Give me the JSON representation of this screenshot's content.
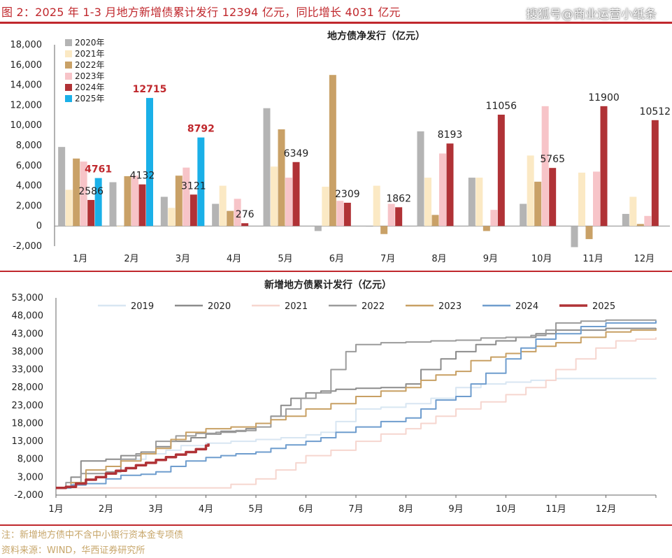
{
  "header": {
    "title": "图 2：2025 年 1-3 月地方新增债累计发行 12394 亿元，同比增长 4031 亿元",
    "watermark": "搜狐号@商业运营小纸条"
  },
  "chart_data": [
    {
      "type": "bar",
      "title": "地方债净发行（亿元）",
      "categories": [
        "1月",
        "2月",
        "3月",
        "4月",
        "5月",
        "6月",
        "7月",
        "8月",
        "9月",
        "10月",
        "11月",
        "12月"
      ],
      "ylim": [
        -2000,
        18000
      ],
      "yticks": [
        "-2,000",
        "0",
        "2,000",
        "4,000",
        "6,000",
        "8,000",
        "10,000",
        "12,000",
        "14,000",
        "16,000",
        "18,000"
      ],
      "legend_position": "top-left",
      "series": [
        {
          "name": "2020年",
          "color": "#b4b4b4",
          "values": [
            7850,
            4350,
            2900,
            2200,
            11700,
            -500,
            0,
            9400,
            4800,
            2200,
            -2100,
            1200
          ]
        },
        {
          "name": "2021年",
          "color": "#fbe9c4",
          "values": [
            3600,
            0,
            1800,
            4000,
            5900,
            3900,
            4000,
            4800,
            4800,
            7000,
            5300,
            2900
          ]
        },
        {
          "name": "2022年",
          "color": "#c9a167",
          "values": [
            6700,
            4950,
            5000,
            1500,
            9600,
            15000,
            -800,
            1100,
            -500,
            4400,
            -1300,
            200
          ]
        },
        {
          "name": "2023年",
          "color": "#f7c4c8",
          "values": [
            6400,
            5000,
            5800,
            2700,
            4800,
            2500,
            2200,
            7200,
            1600,
            11900,
            5400,
            1000
          ]
        },
        {
          "name": "2024年",
          "color": "#b03236",
          "values": [
            2586,
            4132,
            3121,
            276,
            6349,
            2309,
            1862,
            8193,
            11056,
            5765,
            11900,
            10512
          ]
        },
        {
          "name": "2025年",
          "color": "#1ab0e8",
          "values": [
            4761,
            12715,
            8792,
            null,
            null,
            null,
            null,
            null,
            null,
            null,
            null,
            null
          ]
        }
      ],
      "data_labels": [
        {
          "series": "2024年",
          "index": 0,
          "text": "2586",
          "highlight": false
        },
        {
          "series": "2024年",
          "index": 1,
          "text": "4132",
          "highlight": false
        },
        {
          "series": "2024年",
          "index": 2,
          "text": "3121",
          "highlight": false
        },
        {
          "series": "2024年",
          "index": 3,
          "text": "276",
          "highlight": false
        },
        {
          "series": "2024年",
          "index": 4,
          "text": "6349",
          "highlight": false
        },
        {
          "series": "2024年",
          "index": 5,
          "text": "2309",
          "highlight": false
        },
        {
          "series": "2024年",
          "index": 6,
          "text": "1862",
          "highlight": false
        },
        {
          "series": "2024年",
          "index": 7,
          "text": "8193",
          "highlight": false
        },
        {
          "series": "2024年",
          "index": 8,
          "text": "11056",
          "highlight": false
        },
        {
          "series": "2024年",
          "index": 9,
          "text": "5765",
          "highlight": false
        },
        {
          "series": "2024年",
          "index": 10,
          "text": "11900",
          "highlight": false
        },
        {
          "series": "2024年",
          "index": 11,
          "text": "10512",
          "highlight": false
        },
        {
          "series": "2025年",
          "index": 0,
          "text": "4761",
          "highlight": true
        },
        {
          "series": "2025年",
          "index": 1,
          "text": "12715",
          "highlight": true
        },
        {
          "series": "2025年",
          "index": 2,
          "text": "8792",
          "highlight": true
        }
      ]
    },
    {
      "type": "line",
      "title": "新增地方债累计发行（亿元）",
      "xlim": [
        1,
        13
      ],
      "xticks": [
        "1月",
        "2月",
        "3月",
        "4月",
        "5月",
        "6月",
        "7月",
        "8月",
        "9月",
        "10月",
        "11月",
        "12月"
      ],
      "ylim": [
        -2000,
        53000
      ],
      "yticks": [
        "-2,000",
        "3,000",
        "8,000",
        "13,000",
        "18,000",
        "23,000",
        "28,000",
        "33,000",
        "38,000",
        "43,000",
        "48,000",
        "53,000"
      ],
      "legend_position": "top",
      "series": [
        {
          "name": "2019",
          "color": "#d8e6f2",
          "width": 2,
          "points": [
            [
              1,
              0
            ],
            [
              1.35,
              1500
            ],
            [
              1.6,
              5000
            ],
            [
              2,
              6000
            ],
            [
              2.3,
              8000
            ],
            [
              2.8,
              9500
            ],
            [
              3.2,
              10500
            ],
            [
              3.5,
              11800
            ],
            [
              4,
              12500
            ],
            [
              4.5,
              13000
            ],
            [
              5,
              13500
            ],
            [
              5.5,
              14000
            ],
            [
              6,
              14800
            ],
            [
              6.3,
              15500
            ],
            [
              6.6,
              18500
            ],
            [
              7,
              22000
            ],
            [
              7.5,
              22500
            ],
            [
              8,
              23500
            ],
            [
              8.5,
              25000
            ],
            [
              9,
              28000
            ],
            [
              9.5,
              29000
            ],
            [
              10,
              29500
            ],
            [
              10.5,
              30000
            ],
            [
              11,
              30500
            ],
            [
              12,
              30500
            ],
            [
              13,
              30600
            ]
          ]
        },
        {
          "name": "2020",
          "color": "#8c8c8c",
          "width": 2,
          "points": [
            [
              1,
              0
            ],
            [
              1.3,
              3000
            ],
            [
              1.5,
              7500
            ],
            [
              2,
              8000
            ],
            [
              2.3,
              9000
            ],
            [
              2.7,
              10000
            ],
            [
              3,
              11500
            ],
            [
              3.3,
              13000
            ],
            [
              3.7,
              14000
            ],
            [
              4,
              15000
            ],
            [
              4.3,
              15800
            ],
            [
              4.8,
              16500
            ],
            [
              5,
              18000
            ],
            [
              5.3,
              20000
            ],
            [
              5.5,
              23000
            ],
            [
              5.7,
              25000
            ],
            [
              6,
              26500
            ],
            [
              6.3,
              27000
            ],
            [
              6.6,
              27500
            ],
            [
              7,
              27800
            ],
            [
              7.5,
              28000
            ],
            [
              8,
              29000
            ],
            [
              8.3,
              33000
            ],
            [
              8.7,
              36000
            ],
            [
              9,
              38000
            ],
            [
              9.4,
              40000
            ],
            [
              9.8,
              41000
            ],
            [
              10.2,
              42000
            ],
            [
              10.6,
              43000
            ],
            [
              11,
              44000
            ],
            [
              12,
              44500
            ],
            [
              13,
              44600
            ]
          ]
        },
        {
          "name": "2021",
          "color": "#f6d6cf",
          "width": 2,
          "points": [
            [
              1,
              0
            ],
            [
              2,
              0
            ],
            [
              3,
              0
            ],
            [
              4,
              0
            ],
            [
              4.5,
              1000
            ],
            [
              5,
              2500
            ],
            [
              5.4,
              5000
            ],
            [
              5.8,
              7000
            ],
            [
              6,
              9000
            ],
            [
              6.5,
              10500
            ],
            [
              7,
              13000
            ],
            [
              7.5,
              15000
            ],
            [
              8,
              16500
            ],
            [
              8.3,
              18000
            ],
            [
              8.6,
              20000
            ],
            [
              9,
              22000
            ],
            [
              9.5,
              24000
            ],
            [
              10,
              26000
            ],
            [
              10.4,
              28000
            ],
            [
              10.8,
              30000
            ],
            [
              11,
              33000
            ],
            [
              11.4,
              36000
            ],
            [
              11.8,
              39000
            ],
            [
              12.2,
              41000
            ],
            [
              12.6,
              41500
            ],
            [
              13,
              42000
            ]
          ]
        },
        {
          "name": "2022",
          "color": "#9b9b9b",
          "width": 2,
          "points": [
            [
              1,
              0
            ],
            [
              1.2,
              1500
            ],
            [
              1.5,
              4000
            ],
            [
              2,
              4500
            ],
            [
              2.3,
              8000
            ],
            [
              2.6,
              9500
            ],
            [
              3,
              13000
            ],
            [
              3.4,
              14500
            ],
            [
              3.8,
              15200
            ],
            [
              4.2,
              15500
            ],
            [
              4.6,
              16000
            ],
            [
              5,
              17000
            ],
            [
              5.3,
              20000
            ],
            [
              5.6,
              22000
            ],
            [
              5.9,
              25000
            ],
            [
              6.2,
              26500
            ],
            [
              6.5,
              33000
            ],
            [
              6.8,
              38000
            ],
            [
              7,
              40000
            ],
            [
              7.5,
              40500
            ],
            [
              8,
              40700
            ],
            [
              8.5,
              41000
            ],
            [
              9,
              41200
            ],
            [
              9.5,
              41800
            ],
            [
              10,
              42000
            ],
            [
              10.5,
              42500
            ],
            [
              10.8,
              44000
            ],
            [
              11,
              46000
            ],
            [
              11.5,
              46500
            ],
            [
              12,
              46800
            ],
            [
              13,
              46900
            ]
          ]
        },
        {
          "name": "2023",
          "color": "#c8a064",
          "width": 2,
          "points": [
            [
              1,
              0
            ],
            [
              1.3,
              1500
            ],
            [
              1.6,
              5000
            ],
            [
              2,
              6000
            ],
            [
              2.3,
              7500
            ],
            [
              2.7,
              9500
            ],
            [
              3,
              11000
            ],
            [
              3.3,
              13500
            ],
            [
              3.6,
              15500
            ],
            [
              4,
              16500
            ],
            [
              4.5,
              17000
            ],
            [
              5,
              18000
            ],
            [
              5.3,
              19000
            ],
            [
              5.6,
              20000
            ],
            [
              6,
              22000
            ],
            [
              6.5,
              23500
            ],
            [
              7,
              25500
            ],
            [
              7.5,
              27000
            ],
            [
              8,
              28000
            ],
            [
              8.3,
              30000
            ],
            [
              8.6,
              31500
            ],
            [
              9,
              32500
            ],
            [
              9.3,
              35500
            ],
            [
              9.7,
              36500
            ],
            [
              10,
              37500
            ],
            [
              10.3,
              38000
            ],
            [
              10.6,
              39500
            ],
            [
              11,
              40500
            ],
            [
              11.5,
              42000
            ],
            [
              12,
              43500
            ],
            [
              12.5,
              44000
            ],
            [
              13,
              44300
            ]
          ]
        },
        {
          "name": "2024",
          "color": "#6f9dce",
          "width": 2,
          "points": [
            [
              1,
              0
            ],
            [
              1.3,
              800
            ],
            [
              1.6,
              1200
            ],
            [
              2,
              2500
            ],
            [
              2.3,
              3500
            ],
            [
              2.7,
              3800
            ],
            [
              3,
              4500
            ],
            [
              3.3,
              6000
            ],
            [
              3.6,
              7500
            ],
            [
              4,
              8500
            ],
            [
              4.3,
              9000
            ],
            [
              4.6,
              9500
            ],
            [
              5,
              10000
            ],
            [
              5.3,
              11000
            ],
            [
              5.6,
              12000
            ],
            [
              6,
              13000
            ],
            [
              6.3,
              14000
            ],
            [
              6.6,
              15500
            ],
            [
              7,
              17000
            ],
            [
              7.5,
              18500
            ],
            [
              8,
              19500
            ],
            [
              8.3,
              22000
            ],
            [
              8.6,
              24500
            ],
            [
              9,
              25500
            ],
            [
              9.3,
              29000
            ],
            [
              9.6,
              32000
            ],
            [
              10,
              36000
            ],
            [
              10.3,
              39000
            ],
            [
              10.6,
              41500
            ],
            [
              11,
              43000
            ],
            [
              11.5,
              45000
            ],
            [
              12,
              46000
            ],
            [
              13,
              46600
            ]
          ]
        },
        {
          "name": "2025",
          "color": "#b03236",
          "width": 3.5,
          "points": [
            [
              1,
              0
            ],
            [
              1.2,
              300
            ],
            [
              1.4,
              1200
            ],
            [
              1.6,
              2300
            ],
            [
              1.8,
              3000
            ],
            [
              2,
              4000
            ],
            [
              2.2,
              4761
            ],
            [
              2.4,
              5500
            ],
            [
              2.6,
              6300
            ],
            [
              2.8,
              7000
            ],
            [
              3,
              7800
            ],
            [
              3.2,
              8600
            ],
            [
              3.4,
              9300
            ],
            [
              3.6,
              10000
            ],
            [
              3.8,
              10800
            ],
            [
              4,
              11800
            ],
            [
              4.05,
              12394
            ]
          ]
        }
      ]
    }
  ],
  "footnotes": {
    "note": "注：新增地方债中不含中小银行资本金专项债",
    "source": "资料来源：WIND，华西证券研究所"
  }
}
